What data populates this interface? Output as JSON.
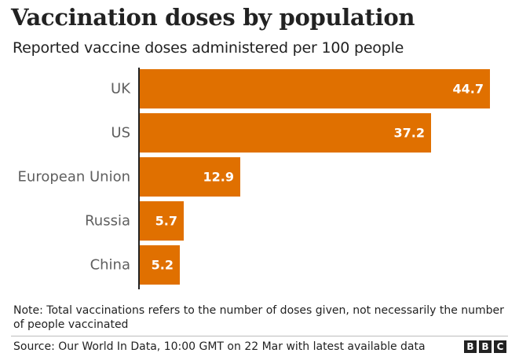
{
  "chart_data": {
    "type": "bar",
    "orientation": "horizontal",
    "title": "Vaccination doses by population",
    "subtitle": "Reported vaccine doses administered per 100 people",
    "categories": [
      "UK",
      "US",
      "European Union",
      "Russia",
      "China"
    ],
    "values": [
      44.7,
      37.2,
      12.9,
      5.7,
      5.2
    ],
    "value_labels": [
      "44.7",
      "37.2",
      "12.9",
      "5.7",
      "5.2"
    ],
    "xlim": [
      0,
      45.7
    ],
    "xlabel": "",
    "ylabel": "",
    "grid": false,
    "legend": "none",
    "bar_color": "#e07000"
  },
  "footer": {
    "note": "Note: Total vaccinations refers to the number of doses given, not necessarily the number of people vaccinated",
    "source": "Source: Our World In Data, 10:00 GMT on 22 Mar with latest available data",
    "logo_letters": [
      "B",
      "B",
      "C"
    ]
  },
  "colors": {
    "axis": "#222222",
    "label": "#5f5f5f",
    "value_text": "#ffffff"
  }
}
